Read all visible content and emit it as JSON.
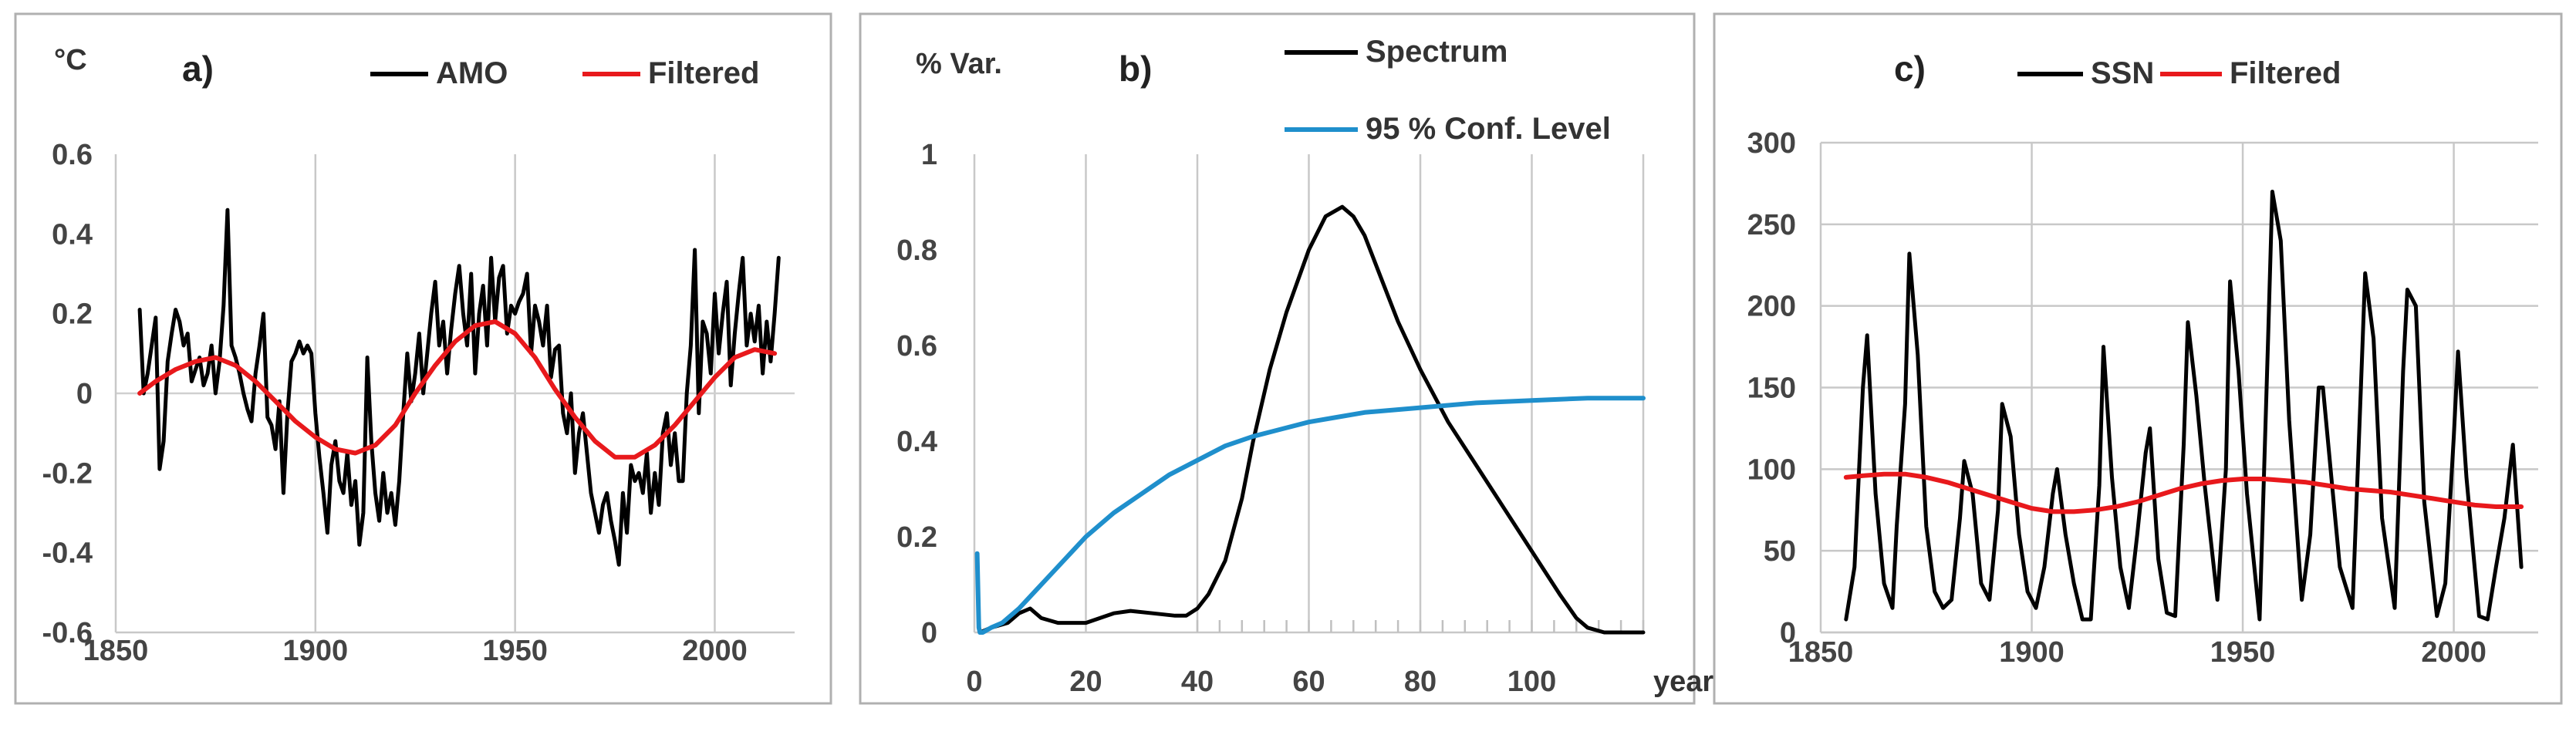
{
  "chart_data": [
    {
      "type": "line",
      "panel_label": "a)",
      "y_unit": "°C",
      "xlim": [
        1850,
        2020
      ],
      "ylim": [
        -0.6,
        0.6
      ],
      "x_ticks": [
        1850,
        1900,
        1950,
        2000
      ],
      "x_tick_labels": [
        "1850",
        "1900",
        "1950",
        "2000"
      ],
      "y_ticks": [
        0.6,
        0.4,
        0.2,
        0,
        -0.2,
        -0.4,
        -0.6
      ],
      "y_tick_labels": [
        "0.6",
        "0.4",
        "0.2",
        "0",
        "-0.2",
        "-0.4",
        "-0.6"
      ],
      "grid": "vertical",
      "legend": "top-right",
      "series": [
        {
          "name": "AMO",
          "color": "#000000",
          "x": [
            1856,
            1857,
            1858,
            1859,
            1860,
            1861,
            1862,
            1863,
            1864,
            1865,
            1866,
            1867,
            1868,
            1869,
            1870,
            1871,
            1872,
            1873,
            1874,
            1875,
            1876,
            1877,
            1878,
            1879,
            1880,
            1881,
            1882,
            1883,
            1884,
            1885,
            1886,
            1887,
            1888,
            1889,
            1890,
            1891,
            1892,
            1893,
            1894,
            1895,
            1896,
            1897,
            1898,
            1899,
            1900,
            1901,
            1902,
            1903,
            1904,
            1905,
            1906,
            1907,
            1908,
            1909,
            1910,
            1911,
            1912,
            1913,
            1914,
            1915,
            1916,
            1917,
            1918,
            1919,
            1920,
            1921,
            1922,
            1923,
            1924,
            1925,
            1926,
            1927,
            1928,
            1929,
            1930,
            1931,
            1932,
            1933,
            1934,
            1935,
            1936,
            1937,
            1938,
            1939,
            1940,
            1941,
            1942,
            1943,
            1944,
            1945,
            1946,
            1947,
            1948,
            1949,
            1950,
            1951,
            1952,
            1953,
            1954,
            1955,
            1956,
            1957,
            1958,
            1959,
            1960,
            1961,
            1962,
            1963,
            1964,
            1965,
            1966,
            1967,
            1968,
            1969,
            1970,
            1971,
            1972,
            1973,
            1974,
            1975,
            1976,
            1977,
            1978,
            1979,
            1980,
            1981,
            1982,
            1983,
            1984,
            1985,
            1986,
            1987,
            1988,
            1989,
            1990,
            1991,
            1992,
            1993,
            1994,
            1995,
            1996,
            1997,
            1998,
            1999,
            2000,
            2001,
            2002,
            2003,
            2004,
            2005,
            2006,
            2007,
            2008,
            2009,
            2010,
            2011,
            2012,
            2013,
            2014,
            2015,
            2016
          ],
          "values": [
            0.21,
            0.0,
            0.05,
            0.12,
            0.19,
            -0.19,
            -0.12,
            0.08,
            0.15,
            0.21,
            0.18,
            0.12,
            0.15,
            0.03,
            0.06,
            0.09,
            0.02,
            0.05,
            0.12,
            0.0,
            0.08,
            0.22,
            0.46,
            0.12,
            0.09,
            0.05,
            0.0,
            -0.04,
            -0.07,
            0.05,
            0.12,
            0.2,
            -0.06,
            -0.08,
            -0.14,
            -0.02,
            -0.25,
            -0.05,
            0.08,
            0.1,
            0.13,
            0.1,
            0.12,
            0.1,
            -0.05,
            -0.16,
            -0.25,
            -0.35,
            -0.18,
            -0.12,
            -0.22,
            -0.25,
            -0.15,
            -0.28,
            -0.22,
            -0.38,
            -0.3,
            0.09,
            -0.12,
            -0.25,
            -0.32,
            -0.2,
            -0.3,
            -0.25,
            -0.33,
            -0.22,
            -0.05,
            0.1,
            -0.02,
            0.05,
            0.15,
            0.0,
            0.1,
            0.2,
            0.28,
            0.12,
            0.18,
            0.05,
            0.16,
            0.25,
            0.32,
            0.2,
            0.12,
            0.3,
            0.05,
            0.2,
            0.27,
            0.12,
            0.34,
            0.18,
            0.29,
            0.32,
            0.15,
            0.22,
            0.2,
            0.23,
            0.25,
            0.3,
            0.1,
            0.22,
            0.18,
            0.12,
            0.22,
            0.04,
            0.11,
            0.12,
            -0.05,
            -0.1,
            0.0,
            -0.2,
            -0.1,
            -0.05,
            -0.15,
            -0.25,
            -0.3,
            -0.35,
            -0.28,
            -0.25,
            -0.32,
            -0.37,
            -0.43,
            -0.25,
            -0.35,
            -0.18,
            -0.22,
            -0.2,
            -0.25,
            -0.15,
            -0.3,
            -0.2,
            -0.28,
            -0.1,
            -0.05,
            -0.18,
            -0.1,
            -0.22,
            -0.22,
            0.0,
            0.12,
            0.36,
            -0.05,
            0.18,
            0.15,
            0.05,
            0.25,
            0.1,
            0.2,
            0.28,
            0.02,
            0.15,
            0.25,
            0.34,
            0.12,
            0.2,
            0.13,
            0.22,
            0.05,
            0.18,
            0.08,
            0.2,
            0.34
          ]
        },
        {
          "name": "Filtered",
          "color": "#e8191c",
          "x": [
            1856,
            1860,
            1865,
            1870,
            1875,
            1880,
            1885,
            1890,
            1895,
            1900,
            1905,
            1910,
            1915,
            1920,
            1925,
            1930,
            1935,
            1940,
            1945,
            1950,
            1955,
            1960,
            1965,
            1970,
            1975,
            1980,
            1985,
            1990,
            1995,
            2000,
            2005,
            2010,
            2015
          ],
          "values": [
            0.0,
            0.03,
            0.06,
            0.08,
            0.09,
            0.07,
            0.03,
            -0.02,
            -0.07,
            -0.11,
            -0.14,
            -0.15,
            -0.13,
            -0.08,
            0.0,
            0.07,
            0.13,
            0.17,
            0.18,
            0.15,
            0.09,
            0.01,
            -0.06,
            -0.12,
            -0.16,
            -0.16,
            -0.13,
            -0.08,
            -0.02,
            0.04,
            0.09,
            0.11,
            0.1
          ]
        }
      ]
    },
    {
      "type": "line",
      "panel_label": "b)",
      "y_unit": "% Var.",
      "x_unit": "years",
      "xlim": [
        0,
        120
      ],
      "ylim": [
        0,
        1
      ],
      "x_ticks": [
        0,
        20,
        40,
        60,
        80,
        100
      ],
      "x_tick_labels": [
        "0",
        "20",
        "40",
        "60",
        "80",
        "100"
      ],
      "y_ticks": [
        1,
        0.8,
        0.6,
        0.4,
        0.2,
        0
      ],
      "y_tick_labels": [
        "1",
        "0.8",
        "0.6",
        "0.4",
        "0.2",
        "0"
      ],
      "grid": "vertical",
      "legend": "top-right",
      "series": [
        {
          "name": "Spectrum",
          "color": "#000000",
          "x": [
            1,
            3,
            6,
            8,
            10,
            12,
            15,
            20,
            25,
            28,
            32,
            36,
            38,
            40,
            42,
            45,
            48,
            50,
            53,
            56,
            60,
            63,
            66,
            68,
            70,
            73,
            76,
            80,
            85,
            90,
            95,
            100,
            105,
            108,
            110,
            113,
            116,
            120
          ],
          "values": [
            0.0,
            0.01,
            0.02,
            0.04,
            0.05,
            0.03,
            0.02,
            0.02,
            0.04,
            0.045,
            0.04,
            0.035,
            0.035,
            0.05,
            0.08,
            0.15,
            0.28,
            0.4,
            0.55,
            0.67,
            0.8,
            0.87,
            0.89,
            0.87,
            0.83,
            0.74,
            0.65,
            0.55,
            0.44,
            0.35,
            0.26,
            0.17,
            0.08,
            0.03,
            0.01,
            0.0,
            0.0,
            0.0
          ]
        },
        {
          "name": "95 % Conf. Level",
          "color": "#1f8fcc",
          "x": [
            0.5,
            0.8,
            1.0,
            1.5,
            3,
            5,
            8,
            12,
            16,
            20,
            25,
            30,
            35,
            40,
            45,
            50,
            55,
            60,
            65,
            70,
            80,
            90,
            100,
            110,
            120
          ],
          "values": [
            0.165,
            0.01,
            0.0,
            0.0,
            0.01,
            0.02,
            0.05,
            0.1,
            0.15,
            0.2,
            0.25,
            0.29,
            0.33,
            0.36,
            0.39,
            0.41,
            0.425,
            0.44,
            0.45,
            0.46,
            0.47,
            0.48,
            0.485,
            0.49,
            0.49
          ]
        }
      ]
    },
    {
      "type": "line",
      "panel_label": "c)",
      "xlim": [
        1850,
        2020
      ],
      "ylim": [
        0,
        300
      ],
      "x_ticks": [
        1850,
        1900,
        1950,
        2000
      ],
      "x_tick_labels": [
        "1850",
        "1900",
        "1950",
        "2000"
      ],
      "y_ticks": [
        300,
        250,
        200,
        150,
        100,
        50,
        0
      ],
      "y_tick_labels": [
        "300",
        "250",
        "200",
        "150",
        "100",
        "50",
        "0"
      ],
      "grid": "both",
      "legend": "top-right",
      "series": [
        {
          "name": "SSN",
          "color": "#000000",
          "x": [
            1856,
            1858,
            1860,
            1861,
            1863,
            1865,
            1867,
            1868,
            1870,
            1871,
            1873,
            1875,
            1877,
            1879,
            1881,
            1883,
            1884,
            1886,
            1888,
            1890,
            1892,
            1893,
            1895,
            1897,
            1899,
            1901,
            1903,
            1905,
            1906,
            1908,
            1910,
            1912,
            1914,
            1916,
            1917,
            1919,
            1921,
            1923,
            1925,
            1927,
            1928,
            1930,
            1932,
            1934,
            1936,
            1937,
            1939,
            1941,
            1944,
            1946,
            1947,
            1949,
            1951,
            1954,
            1956,
            1957,
            1959,
            1961,
            1964,
            1966,
            1968,
            1969,
            1971,
            1973,
            1976,
            1978,
            1979,
            1981,
            1983,
            1986,
            1988,
            1989,
            1991,
            1993,
            1996,
            1998,
            2000,
            2001,
            2003,
            2006,
            2008,
            2010,
            2012,
            2014,
            2016
          ],
          "values": [
            8,
            40,
            150,
            182,
            85,
            30,
            15,
            65,
            140,
            232,
            170,
            65,
            25,
            15,
            20,
            70,
            105,
            85,
            30,
            20,
            75,
            140,
            120,
            60,
            25,
            15,
            40,
            85,
            100,
            60,
            30,
            8,
            8,
            90,
            175,
            95,
            40,
            15,
            60,
            110,
            125,
            45,
            12,
            10,
            115,
            190,
            145,
            90,
            20,
            100,
            215,
            160,
            85,
            8,
            180,
            270,
            240,
            130,
            20,
            60,
            150,
            150,
            95,
            40,
            15,
            150,
            220,
            180,
            70,
            15,
            160,
            210,
            200,
            80,
            10,
            30,
            120,
            172,
            95,
            10,
            8,
            40,
            70,
            115,
            40
          ]
        },
        {
          "name": "Filtered",
          "color": "#e8191c",
          "x": [
            1856,
            1860,
            1865,
            1870,
            1875,
            1880,
            1885,
            1890,
            1895,
            1900,
            1905,
            1910,
            1915,
            1920,
            1925,
            1930,
            1935,
            1940,
            1945,
            1950,
            1955,
            1960,
            1965,
            1970,
            1975,
            1980,
            1985,
            1990,
            1995,
            2000,
            2005,
            2010,
            2016
          ],
          "values": [
            95,
            96,
            97,
            97,
            95,
            92,
            88,
            84,
            80,
            76,
            74,
            74,
            75,
            77,
            80,
            84,
            88,
            91,
            93,
            94,
            94,
            93,
            92,
            90,
            88,
            87,
            86,
            84,
            82,
            80,
            78,
            77,
            77
          ]
        }
      ]
    }
  ]
}
